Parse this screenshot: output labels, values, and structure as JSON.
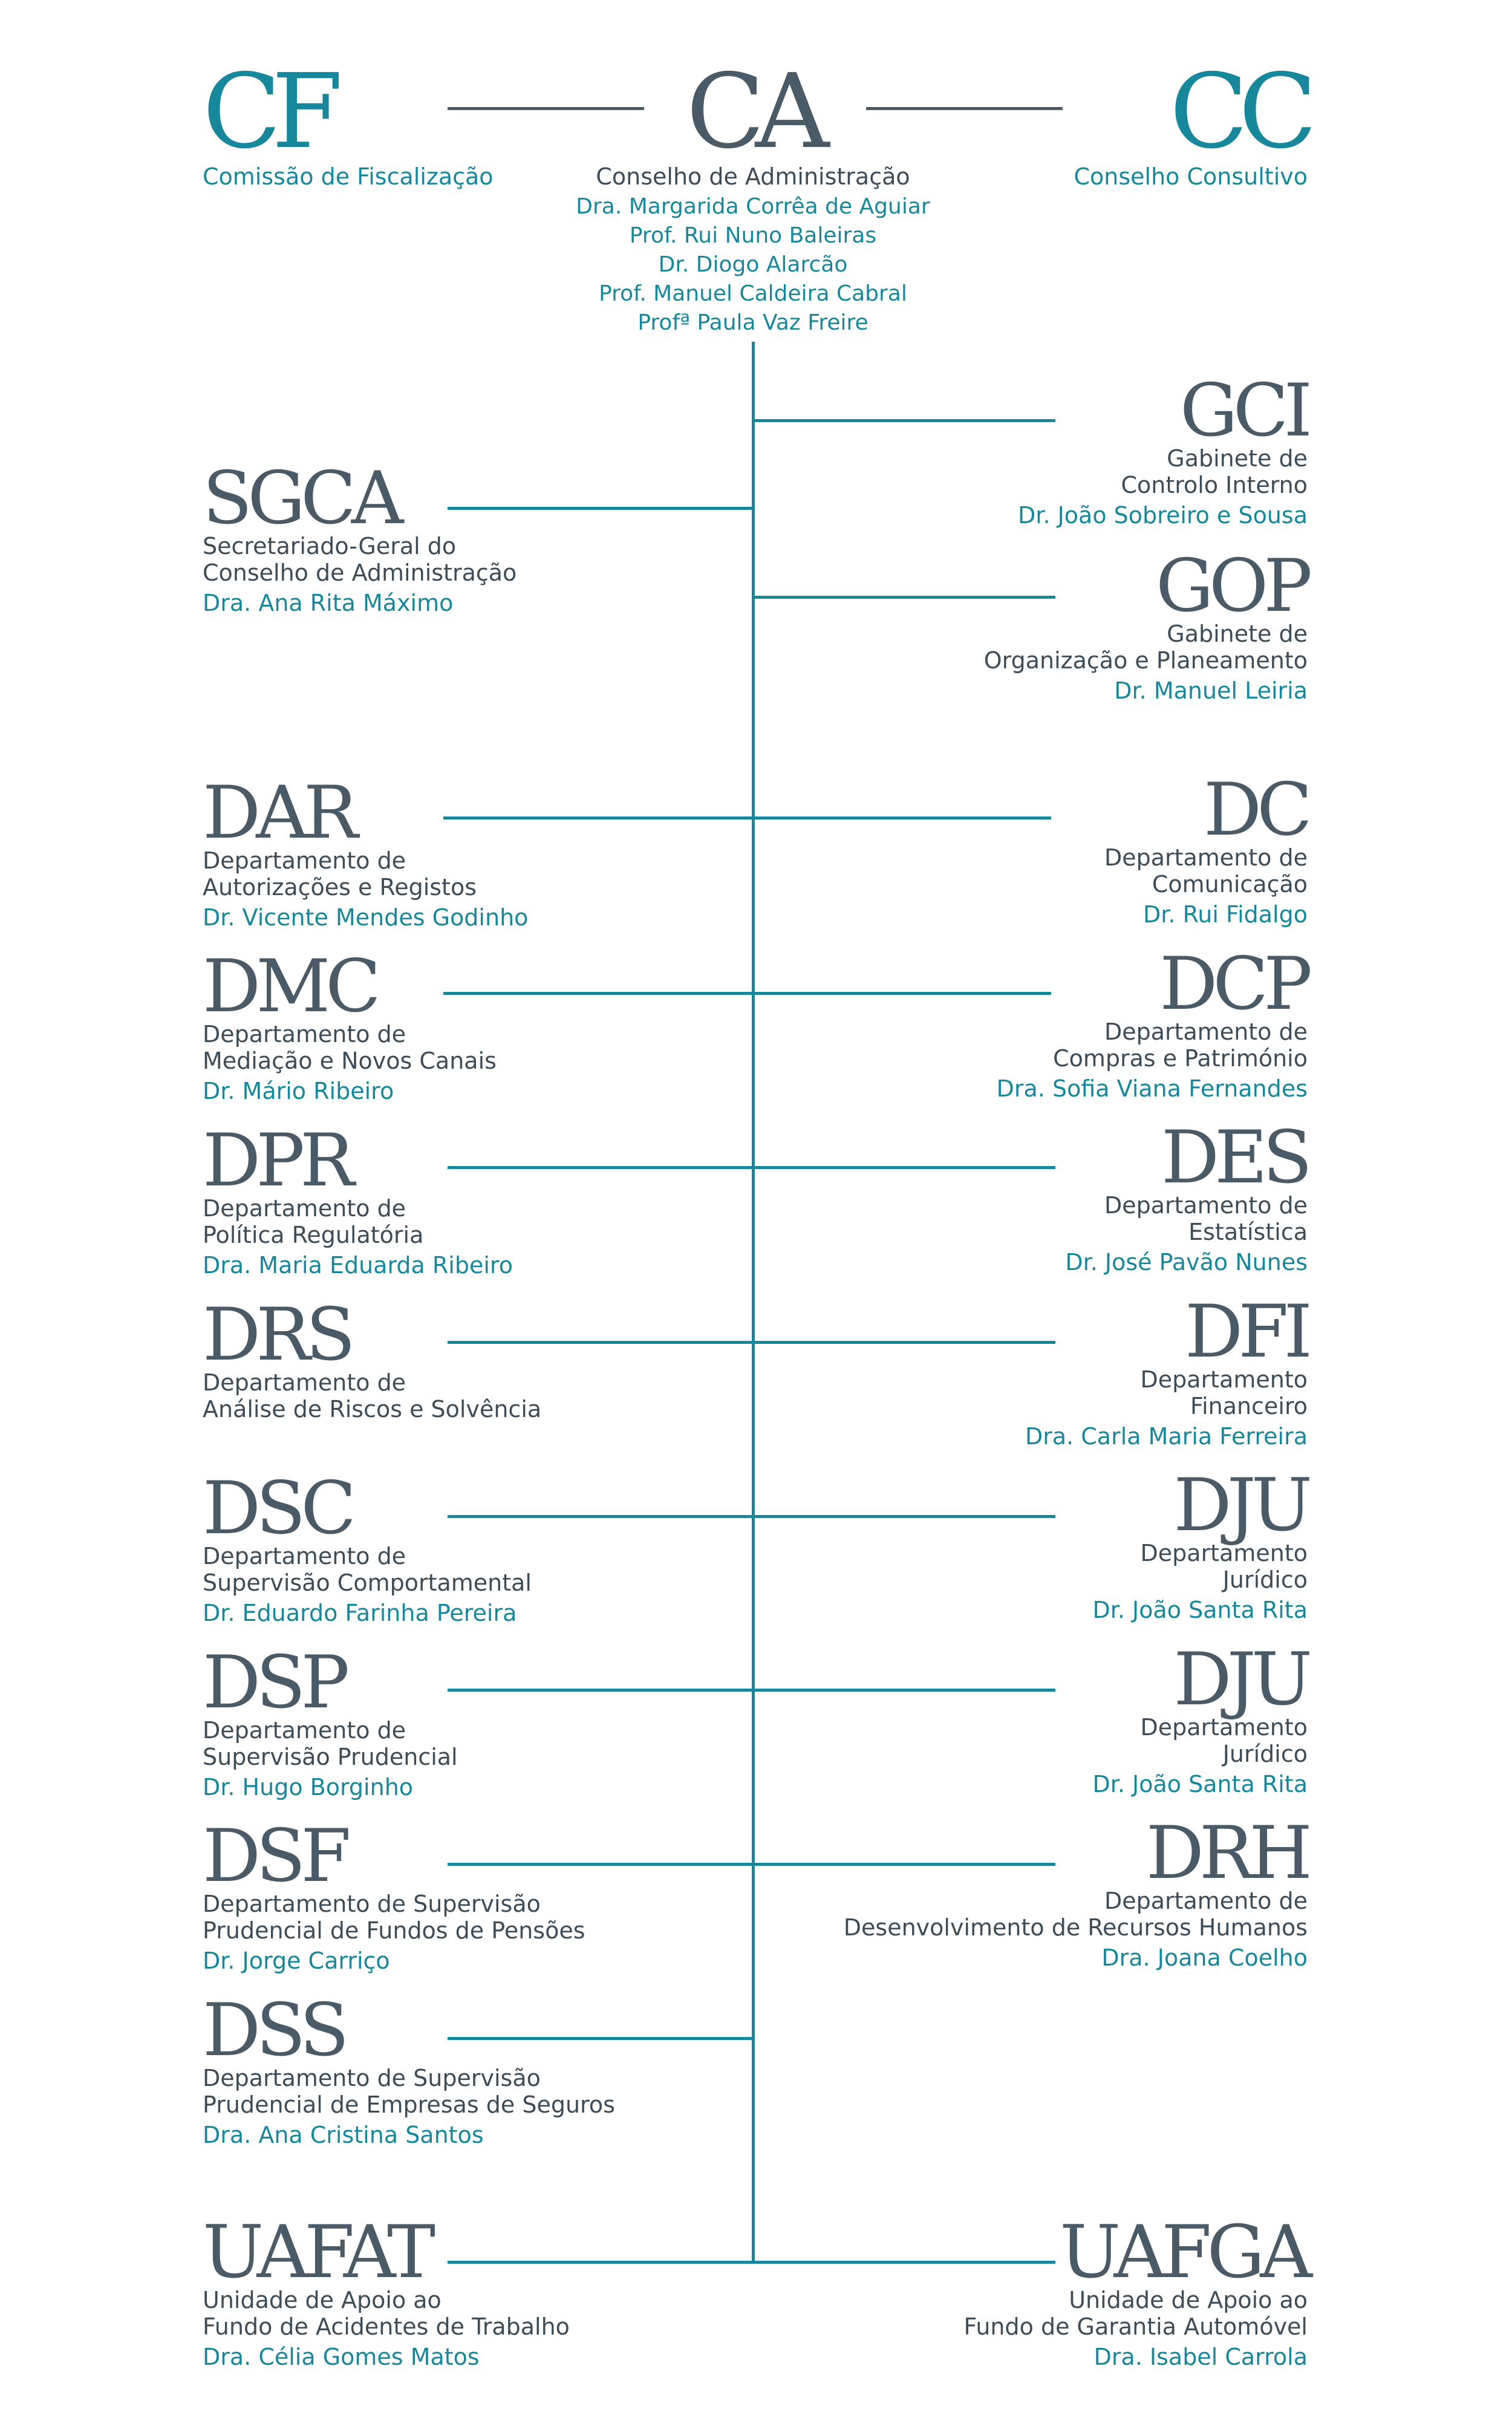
{
  "top": {
    "cf": {
      "abbr": "CF",
      "name": "Comissão de Fiscalização"
    },
    "ca": {
      "abbr": "CA",
      "name": "Conselho de Administração",
      "members": [
        "Dra. Margarida Corrêa de Aguiar",
        "Prof. Rui Nuno Baleiras",
        "Dr. Diogo Alarcão",
        "Prof. Manuel Caldeira Cabral",
        "Profª Paula Vaz Freire"
      ]
    },
    "cc": {
      "abbr": "CC",
      "name": "Conselho Consultivo"
    }
  },
  "right_units": [
    {
      "abbr": "GCI",
      "lines": [
        "Gabinete de",
        "Controlo Interno"
      ],
      "head": "Dr. João Sobreiro e Sousa"
    },
    {
      "abbr": "GOP",
      "lines": [
        "Gabinete de",
        "Organização e Planeamento"
      ],
      "head": "Dr. Manuel Leiria"
    },
    {
      "abbr": "DC",
      "lines": [
        "Departamento de",
        "Comunicação"
      ],
      "head": "Dr. Rui Fidalgo"
    },
    {
      "abbr": "DCP",
      "lines": [
        "Departamento de",
        "Compras e Património"
      ],
      "head": "Dra. Sofia Viana Fernandes"
    },
    {
      "abbr": "DES",
      "lines": [
        "Departamento de",
        "Estatística"
      ],
      "head": "Dr. José Pavão Nunes"
    },
    {
      "abbr": "DFI",
      "lines": [
        "Departamento",
        "Financeiro"
      ],
      "head": "Dra. Carla Maria Ferreira"
    },
    {
      "abbr": "DJU",
      "lines": [
        "Departamento",
        "Jurídico"
      ],
      "head": "Dr. João Santa Rita"
    },
    {
      "abbr": "DJU",
      "lines": [
        "Departamento",
        "Jurídico"
      ],
      "head": "Dr. João Santa Rita"
    },
    {
      "abbr": "DRH",
      "lines": [
        "Departamento de",
        "Desenvolvimento de Recursos Humanos"
      ],
      "head": "Dra. Joana Coelho"
    },
    {
      "abbr": "UAFGA",
      "lines": [
        "Unidade de Apoio ao",
        "Fundo de Garantia Automóvel"
      ],
      "head": "Dra. Isabel Carrola"
    }
  ],
  "left_units": [
    {
      "abbr": "SGCA",
      "lines": [
        "Secretariado-Geral do",
        "Conselho de Administração"
      ],
      "head": "Dra. Ana Rita Máximo"
    },
    {
      "abbr": "DAR",
      "lines": [
        "Departamento de",
        "Autorizações e Registos"
      ],
      "head": "Dr. Vicente Mendes Godinho"
    },
    {
      "abbr": "DMC",
      "lines": [
        "Departamento de",
        "Mediação e Novos Canais"
      ],
      "head": "Dr. Mário Ribeiro"
    },
    {
      "abbr": "DPR",
      "lines": [
        "Departamento de",
        "Política Regulatória"
      ],
      "head": "Dra. Maria Eduarda Ribeiro"
    },
    {
      "abbr": "DRS",
      "lines": [
        "Departamento de",
        "Análise de Riscos e Solvência"
      ],
      "head": ""
    },
    {
      "abbr": "DSC",
      "lines": [
        "Departamento de",
        "Supervisão Comportamental"
      ],
      "head": "Dr. Eduardo Farinha Pereira"
    },
    {
      "abbr": "DSP",
      "lines": [
        "Departamento de",
        "Supervisão Prudencial"
      ],
      "head": "Dr. Hugo Borginho"
    },
    {
      "abbr": "DSF",
      "lines": [
        "Departamento de Supervisão",
        "Prudencial de Fundos de Pensões"
      ],
      "head": "Dr. Jorge Carriço"
    },
    {
      "abbr": "DSS",
      "lines": [
        "Departamento de Supervisão",
        "Prudencial de Empresas de Seguros"
      ],
      "head": "Dra. Ana Cristina Santos"
    },
    {
      "abbr": "UAFAT",
      "lines": [
        "Unidade de Apoio ao",
        "Fundo de Acidentes de Trabalho"
      ],
      "head": "Dra. Célia Gomes Matos"
    }
  ]
}
